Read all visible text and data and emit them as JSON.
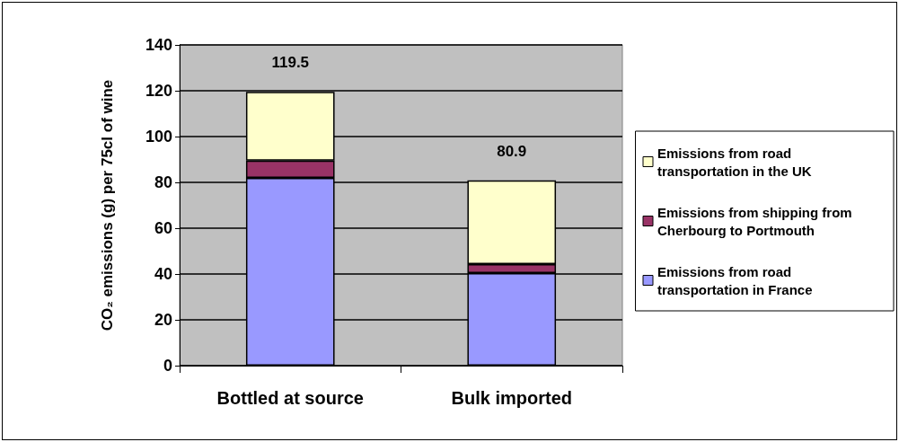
{
  "chart_data": {
    "type": "bar",
    "stacked": true,
    "categories": [
      "Bottled at source",
      "Bulk imported"
    ],
    "series": [
      {
        "name": "Emissions from road transportation in France",
        "color": "#9999ff",
        "values": [
          82.0,
          40.4
        ]
      },
      {
        "name": "Emissions from shipping from Cherbourg to Portmouth",
        "color": "#993366",
        "values": [
          7.5,
          3.9
        ]
      },
      {
        "name": "Emissions from road transportation in the UK",
        "color": "#ffffcc",
        "values": [
          30.0,
          36.6
        ]
      }
    ],
    "totals": [
      "119.5",
      "80.9"
    ],
    "ylabel": "CO₂ emissions (g) per 75cl of wine",
    "ylim": [
      0,
      140
    ],
    "yticks": [
      0,
      20,
      40,
      60,
      80,
      100,
      120,
      140
    ],
    "grid": "y",
    "legend": "right"
  }
}
